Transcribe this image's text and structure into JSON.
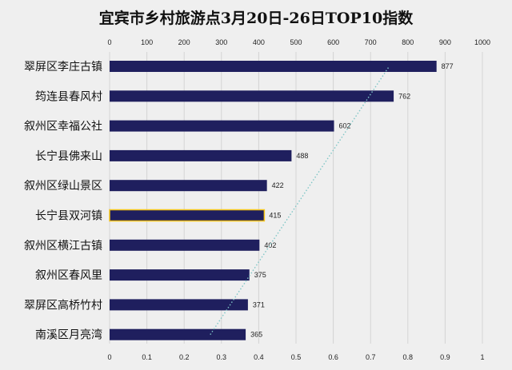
{
  "chart_data": {
    "type": "bar",
    "orientation": "horizontal",
    "title": "宜宾市乡村旅游点3月20日-26日TOP10指数",
    "categories": [
      "翠屏区李庄古镇",
      "筠连县春风村",
      "叙州区幸福公社",
      "长宁县佛来山",
      "叙州区绿山景区",
      "长宁县双河镇",
      "叙州区横江古镇",
      "叙州区春风里",
      "翠屏区高桥竹村",
      "南溪区月亮湾"
    ],
    "values": [
      877,
      762,
      602,
      488,
      422,
      415,
      402,
      375,
      371,
      365
    ],
    "xlim": [
      0,
      1000
    ],
    "xticks": [
      "0",
      "100",
      "200",
      "300",
      "400",
      "500",
      "600",
      "700",
      "800",
      "900",
      "1000"
    ],
    "secondary_xlim": [
      0,
      1
    ],
    "secondary_xticks": [
      "0",
      "0.1",
      "0.2",
      "0.3",
      "0.4",
      "0.5",
      "0.6",
      "0.7",
      "0.8",
      "0.9",
      "1"
    ],
    "trendline": {
      "style": "dotted",
      "from": [
        0.27,
        365
      ],
      "to": [
        0.75,
        877
      ]
    },
    "highlighted_category": "长宁县双河镇",
    "colors": {
      "bar": "#1f1f5e",
      "highlight_border": "#f5c518",
      "grid": "#d4d4d4",
      "trend": "#7fc6c6"
    }
  }
}
